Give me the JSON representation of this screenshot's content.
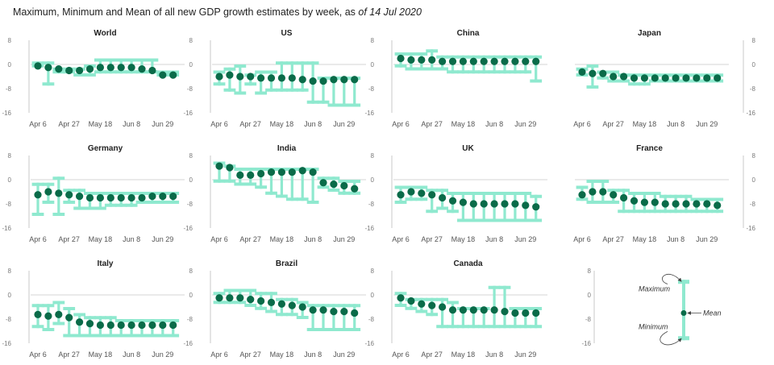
{
  "title": {
    "prefix": "Maximum, Minimum and Mean of all new GDP growth estimates by week, as ",
    "date": "of 14 Jul 2020"
  },
  "colors": {
    "range": "#8fe9cf",
    "mean": "#0a6b49",
    "axis": "#c8c8c8",
    "arrow": "#444444"
  },
  "legend": {
    "maximum": "Maximum",
    "mean": "Mean",
    "minimum": "Minimum",
    "example": {
      "min": -15,
      "max": 5,
      "mean": -6
    }
  },
  "chart_data": [
    {
      "type": "range",
      "title": "World",
      "ylim": [
        -16,
        8
      ],
      "yticks": [
        "8",
        "0",
        "-8",
        "-16"
      ],
      "xticks": [
        "Apr 6",
        "Apr 27",
        "May 18",
        "Jun 8",
        "Jun 29"
      ],
      "weeks": [
        "Apr 6",
        "Apr 13",
        "Apr 20",
        "Apr 27",
        "May 4",
        "May 11",
        "May 18",
        "May 25",
        "Jun 1",
        "Jun 8",
        "Jun 15",
        "Jun 22",
        "Jun 29",
        "Jul 6"
      ],
      "min": [
        -1,
        -7,
        -3,
        -3,
        -4,
        -4,
        -3,
        -3,
        -3,
        -3,
        -3,
        -3,
        -4,
        -4
      ],
      "max": [
        1,
        1,
        -1,
        -1,
        -1,
        0,
        2,
        2,
        2,
        2,
        2,
        2,
        -2,
        -2
      ],
      "mean": [
        -0.5,
        -1,
        -1.5,
        -2,
        -2,
        -1.5,
        -1,
        -1,
        -1,
        -1,
        -1.5,
        -2,
        -3.5,
        -3.5
      ]
    },
    {
      "type": "range",
      "title": "US",
      "ylim": [
        -16,
        8
      ],
      "yticks": [
        "8",
        "0",
        "-8",
        "-16"
      ],
      "xticks": [
        "Apr 6",
        "Apr 27",
        "May 18",
        "Jun 8",
        "Jun 29"
      ],
      "weeks": [
        "Apr 6",
        "Apr 13",
        "Apr 20",
        "Apr 27",
        "May 4",
        "May 11",
        "May 18",
        "May 25",
        "Jun 1",
        "Jun 8",
        "Jun 15",
        "Jun 22",
        "Jun 29",
        "Jul 6"
      ],
      "min": [
        -7,
        -9,
        -10,
        -7,
        -10,
        -9,
        -9,
        -9,
        -9,
        -13,
        -13,
        -14,
        -14,
        -14
      ],
      "max": [
        -2,
        -1,
        0,
        -3,
        -2,
        -2,
        1,
        1,
        1,
        1,
        -4,
        -4,
        -4,
        -4
      ],
      "mean": [
        -4,
        -3.5,
        -4,
        -4,
        -4.5,
        -4.5,
        -4.5,
        -4.5,
        -5,
        -5.5,
        -5.5,
        -5,
        -5,
        -5
      ]
    },
    {
      "type": "range",
      "title": "China",
      "ylim": [
        -16,
        8
      ],
      "yticks": [
        "8",
        "0",
        "-8",
        "-16"
      ],
      "xticks": [
        "Apr 6",
        "Apr 27",
        "May 18",
        "Jun 8",
        "Jun 29"
      ],
      "weeks": [
        "Apr 6",
        "Apr 13",
        "Apr 20",
        "Apr 27",
        "May 4",
        "May 11",
        "May 18",
        "May 25",
        "Jun 1",
        "Jun 8",
        "Jun 15",
        "Jun 22",
        "Jun 29",
        "Jul 6"
      ],
      "min": [
        -1,
        -2,
        -2,
        -2,
        -2,
        -3,
        -3,
        -3,
        -3,
        -3,
        -3,
        -3,
        -3,
        -6
      ],
      "max": [
        4,
        4,
        4,
        5,
        3,
        3,
        3,
        3,
        3,
        3,
        3,
        3,
        3,
        3
      ],
      "mean": [
        2,
        1.5,
        1.5,
        1.5,
        1,
        1,
        1,
        1,
        1,
        1,
        1,
        1,
        1,
        1
      ]
    },
    {
      "type": "range",
      "title": "Japan",
      "ylim": [
        -16,
        8
      ],
      "yticks": [
        "8",
        "0",
        "-8",
        "-16"
      ],
      "xticks": [
        "Apr 6",
        "Apr 27",
        "May 18",
        "Jun 8",
        "Jun 29"
      ],
      "weeks": [
        "Apr 6",
        "Apr 13",
        "Apr 20",
        "Apr 27",
        "May 4",
        "May 11",
        "May 18",
        "May 25",
        "Jun 1",
        "Jun 8",
        "Jun 15",
        "Jun 22",
        "Jun 29",
        "Jul 6"
      ],
      "min": [
        -4,
        -8,
        -5,
        -6,
        -6,
        -7,
        -7,
        -6,
        -6,
        -6,
        -6,
        -6,
        -6,
        -6
      ],
      "max": [
        -1,
        0,
        -2,
        -2,
        -3,
        -3,
        -3,
        -3,
        -3,
        -3,
        -3,
        -3,
        -3,
        -3
      ],
      "mean": [
        -2.5,
        -3,
        -3,
        -4,
        -4,
        -4.5,
        -4.5,
        -4.5,
        -4.5,
        -4.5,
        -4.5,
        -4.5,
        -4.5,
        -4.5
      ]
    },
    {
      "type": "range",
      "title": "Germany",
      "ylim": [
        -16,
        8
      ],
      "yticks": [
        "8",
        "0",
        "-8",
        "-16"
      ],
      "xticks": [
        "Apr 6",
        "Apr 27",
        "May 18",
        "Jun 8",
        "Jun 29"
      ],
      "weeks": [
        "Apr 6",
        "Apr 13",
        "Apr 20",
        "Apr 27",
        "May 4",
        "May 11",
        "May 18",
        "May 25",
        "Jun 1",
        "Jun 8",
        "Jun 15",
        "Jun 22",
        "Jun 29",
        "Jul 6"
      ],
      "min": [
        -12,
        -8,
        -12,
        -8,
        -10,
        -10,
        -10,
        -9,
        -9,
        -9,
        -8,
        -8,
        -8,
        -8
      ],
      "max": [
        -1,
        -1,
        1,
        -3,
        -3,
        -4,
        -4,
        -4,
        -4,
        -4,
        -4,
        -4,
        -4,
        -4
      ],
      "mean": [
        -5,
        -4,
        -4.5,
        -5,
        -5.5,
        -6,
        -6,
        -6,
        -6,
        -6,
        -6,
        -5.5,
        -5.5,
        -5.5
      ]
    },
    {
      "type": "range",
      "title": "India",
      "ylim": [
        -16,
        8
      ],
      "yticks": [
        "8",
        "0",
        "-8",
        "-16"
      ],
      "xticks": [
        "Apr 6",
        "Apr 27",
        "May 18",
        "Jun 8",
        "Jun 29"
      ],
      "weeks": [
        "Apr 6",
        "Apr 13",
        "Apr 20",
        "Apr 27",
        "May 4",
        "May 11",
        "May 18",
        "May 25",
        "Jun 1",
        "Jun 8",
        "Jun 15",
        "Jun 22",
        "Jun 29",
        "Jul 6"
      ],
      "min": [
        -1,
        -1,
        -2,
        -2,
        -3,
        -5,
        -6,
        -7,
        -7,
        -8,
        -3,
        -4,
        -5,
        -5
      ],
      "max": [
        6,
        5,
        4,
        4,
        4,
        4,
        4,
        4,
        4,
        4,
        1,
        1,
        0,
        0
      ],
      "mean": [
        4.5,
        4,
        1.5,
        1.5,
        2,
        2.5,
        2.5,
        2.5,
        3,
        2.5,
        -1,
        -1.5,
        -2,
        -3
      ]
    },
    {
      "type": "range",
      "title": "UK",
      "ylim": [
        -16,
        8
      ],
      "yticks": [
        "8",
        "0",
        "-8",
        "-16"
      ],
      "xticks": [
        "Apr 6",
        "Apr 27",
        "May 18",
        "Jun 8",
        "Jun 29"
      ],
      "weeks": [
        "Apr 6",
        "Apr 13",
        "Apr 20",
        "Apr 27",
        "May 4",
        "May 11",
        "May 18",
        "May 25",
        "Jun 1",
        "Jun 8",
        "Jun 15",
        "Jun 22",
        "Jun 29",
        "Jul 6"
      ],
      "min": [
        -8,
        -7,
        -7,
        -11,
        -10,
        -11,
        -14,
        -14,
        -14,
        -14,
        -14,
        -14,
        -14,
        -14
      ],
      "max": [
        -2,
        -2,
        -2,
        -3,
        -3,
        -4,
        -4,
        -4,
        -4,
        -4,
        -4,
        -4,
        -4,
        -5
      ],
      "mean": [
        -5,
        -4,
        -4.5,
        -5,
        -6,
        -7,
        -7.5,
        -8,
        -8,
        -8,
        -8,
        -8,
        -8.5,
        -9
      ]
    },
    {
      "type": "range",
      "title": "France",
      "ylim": [
        -16,
        8
      ],
      "yticks": [
        "8",
        "0",
        "-8",
        "-16"
      ],
      "xticks": [
        "Apr 6",
        "Apr 27",
        "May 18",
        "Jun 8",
        "Jun 29"
      ],
      "weeks": [
        "Apr 6",
        "Apr 13",
        "Apr 20",
        "Apr 27",
        "May 4",
        "May 11",
        "May 18",
        "May 25",
        "Jun 1",
        "Jun 8",
        "Jun 15",
        "Jun 22",
        "Jun 29",
        "Jul 6"
      ],
      "min": [
        -7,
        -8,
        -8,
        -8,
        -11,
        -11,
        -11,
        -11,
        -11,
        -11,
        -11,
        -11,
        -11,
        -11
      ],
      "max": [
        -2,
        0,
        0,
        -3,
        -3,
        -4,
        -4,
        -4,
        -5,
        -5,
        -5,
        -6,
        -6,
        -6
      ],
      "mean": [
        -5,
        -4,
        -4,
        -5,
        -6,
        -7,
        -7.5,
        -7.5,
        -8,
        -8,
        -8,
        -8,
        -8,
        -8.5
      ]
    },
    {
      "type": "range",
      "title": "Italy",
      "ylim": [
        -16,
        8
      ],
      "yticks": [
        "8",
        "0",
        "-8",
        "-16"
      ],
      "xticks": [
        "Apr 6",
        "Apr 27",
        "May 18",
        "Jun 8",
        "Jun 29"
      ],
      "weeks": [
        "Apr 6",
        "Apr 13",
        "Apr 20",
        "Apr 27",
        "May 4",
        "May 11",
        "May 18",
        "May 25",
        "Jun 1",
        "Jun 8",
        "Jun 15",
        "Jun 22",
        "Jun 29",
        "Jul 6"
      ],
      "min": [
        -11,
        -12,
        -10,
        -14,
        -14,
        -14,
        -14,
        -14,
        -14,
        -14,
        -14,
        -14,
        -14,
        -14
      ],
      "max": [
        -3,
        -3,
        -2,
        -4,
        -6,
        -7,
        -7,
        -7,
        -8,
        -8,
        -8,
        -8,
        -8,
        -8
      ],
      "mean": [
        -6.5,
        -7,
        -6.5,
        -7.5,
        -9,
        -9.5,
        -10,
        -10,
        -10,
        -10,
        -10,
        -10,
        -10,
        -10
      ]
    },
    {
      "type": "range",
      "title": "Brazil",
      "ylim": [
        -16,
        8
      ],
      "yticks": [
        "8",
        "0",
        "-8",
        "-16"
      ],
      "xticks": [
        "Apr 6",
        "Apr 27",
        "May 18",
        "Jun 8",
        "Jun 29"
      ],
      "weeks": [
        "Apr 6",
        "Apr 13",
        "Apr 20",
        "Apr 27",
        "May 4",
        "May 11",
        "May 18",
        "May 25",
        "Jun 1",
        "Jun 8",
        "Jun 15",
        "Jun 22",
        "Jun 29",
        "Jul 6"
      ],
      "min": [
        -3,
        -3,
        -3,
        -4,
        -5,
        -6,
        -7,
        -7,
        -8,
        -12,
        -12,
        -12,
        -12,
        -12
      ],
      "max": [
        1,
        2,
        2,
        2,
        1,
        1,
        -1,
        -1,
        -2,
        -3,
        -3,
        -3,
        -3,
        -3
      ],
      "mean": [
        -1,
        -1,
        -1,
        -1.5,
        -2,
        -2.5,
        -3,
        -3.5,
        -4,
        -5,
        -5,
        -5.5,
        -5.5,
        -6
      ]
    },
    {
      "type": "range",
      "title": "Canada",
      "ylim": [
        -16,
        8
      ],
      "yticks": [
        "8",
        "0",
        "-8",
        "-16"
      ],
      "xticks": [
        "Apr 6",
        "Apr 27",
        "May 18",
        "Jun 8",
        "Jun 29"
      ],
      "weeks": [
        "Apr 6",
        "Apr 13",
        "Apr 20",
        "Apr 27",
        "May 4",
        "May 11",
        "May 18",
        "May 25",
        "Jun 1",
        "Jun 8",
        "Jun 15",
        "Jun 22",
        "Jun 29",
        "Jul 6"
      ],
      "min": [
        -4,
        -5,
        -6,
        -7,
        -11,
        -11,
        -11,
        -11,
        -11,
        -11,
        -11,
        -11,
        -11,
        -11
      ],
      "max": [
        1,
        -1,
        -1,
        -1,
        -1,
        -2,
        -4,
        -4,
        -4,
        3,
        3,
        -4,
        -4,
        -4
      ],
      "mean": [
        -1,
        -2,
        -3,
        -3.5,
        -4,
        -5,
        -5,
        -5,
        -5,
        -5,
        -5.5,
        -6,
        -6,
        -6
      ]
    }
  ]
}
